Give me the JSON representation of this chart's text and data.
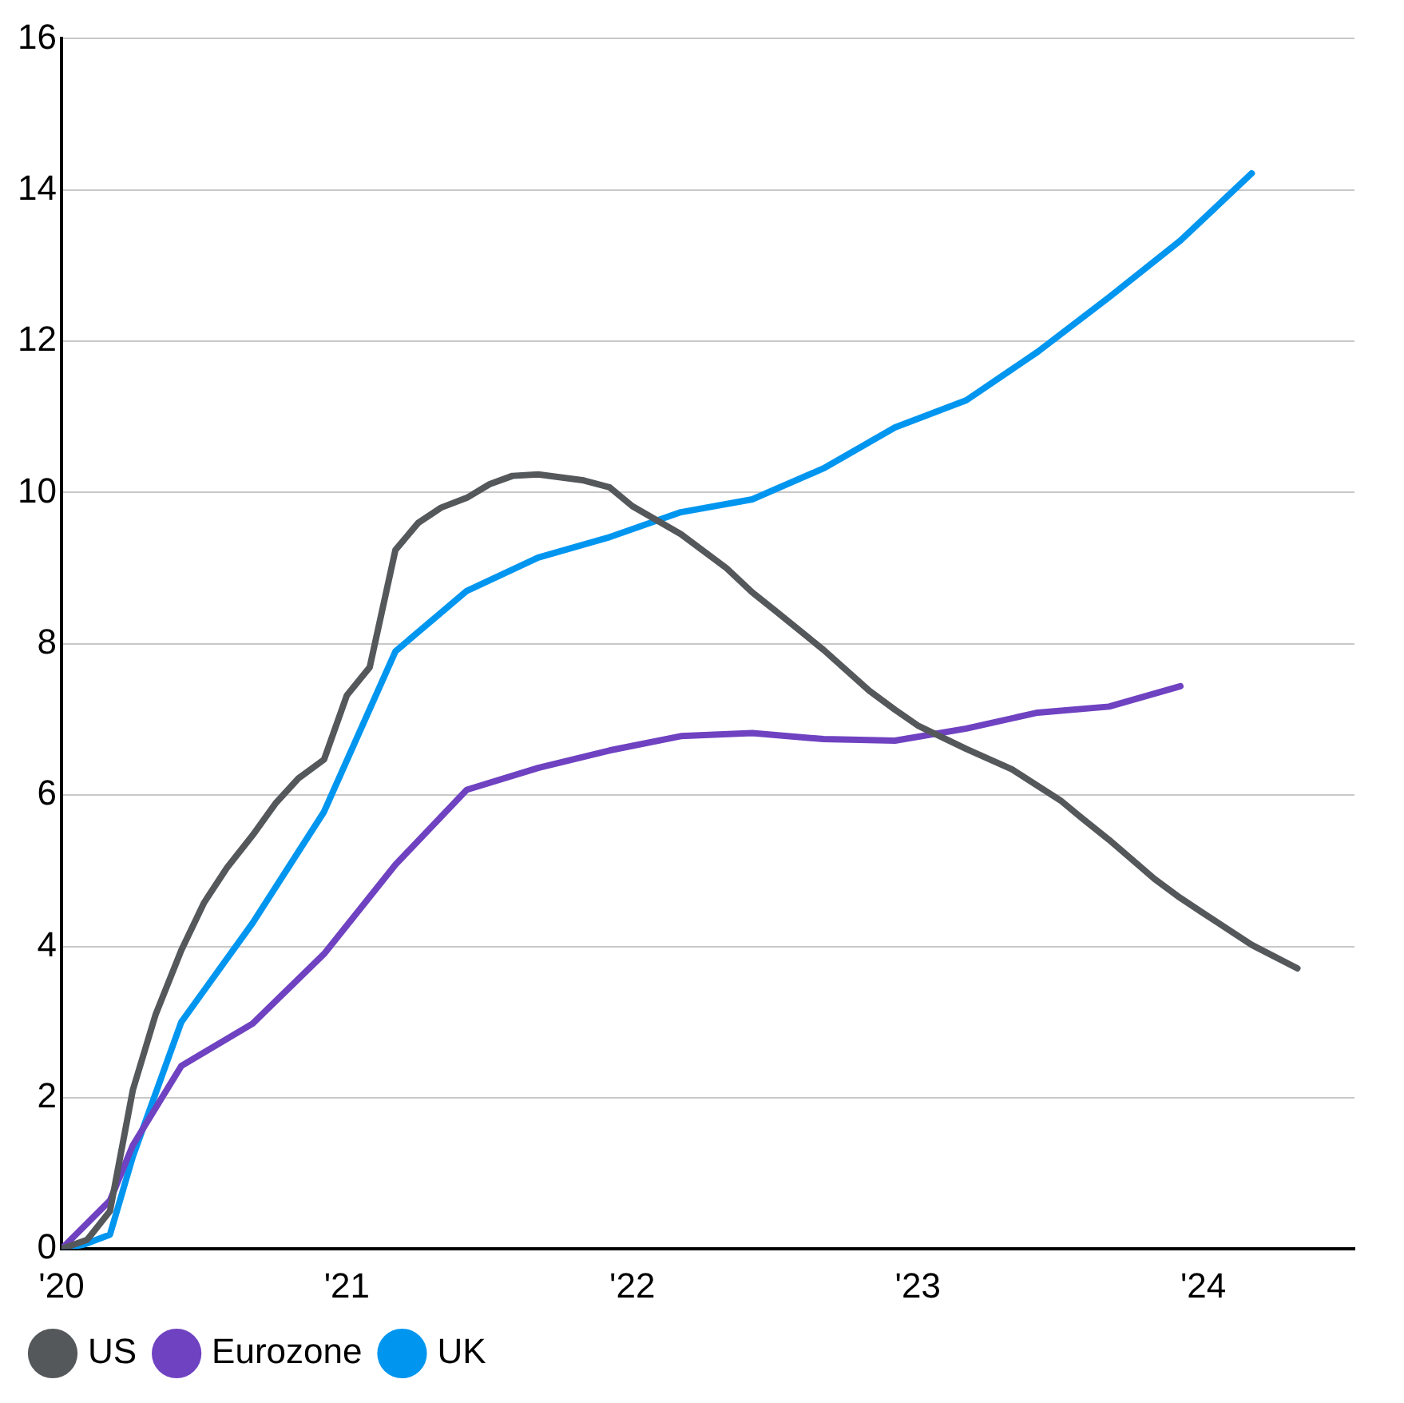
{
  "chart_data": {
    "type": "line",
    "series": [
      {
        "name": "US",
        "color": "#55585b",
        "x": [
          2020,
          2020.09,
          2020.17,
          2020.25,
          2020.33,
          2020.42,
          2020.5,
          2020.58,
          2020.67,
          2020.75,
          2020.83,
          2020.92,
          2021,
          2021.08,
          2021.17,
          2021.25,
          2021.33,
          2021.42,
          2021.5,
          2021.58,
          2021.67,
          2021.75,
          2021.83,
          2021.92,
          2022,
          2022.17,
          2022.33,
          2022.42,
          2022.5,
          2022.67,
          2022.83,
          2022.92,
          2023,
          2023.17,
          2023.33,
          2023.5,
          2023.58,
          2023.67,
          2023.83,
          2023.92,
          2024,
          2024.17,
          2024.33
        ],
        "values": [
          0,
          0.12,
          0.5,
          2.1,
          3.1,
          3.95,
          4.58,
          5.04,
          5.47,
          5.89,
          6.22,
          6.47,
          7.32,
          7.69,
          9.24,
          9.6,
          9.8,
          9.93,
          10.11,
          10.22,
          10.24,
          10.2,
          10.16,
          10.07,
          9.82,
          9.45,
          9,
          8.68,
          8.44,
          7.92,
          7.38,
          7.13,
          6.92,
          6.61,
          6.34,
          5.93,
          5.68,
          5.41,
          4.89,
          4.64,
          4.44,
          4.02,
          3.71
        ]
      },
      {
        "name": "Eurozone",
        "color": "#6f42c1",
        "x": [
          2020,
          2020.17,
          2020.25,
          2020.42,
          2020.67,
          2020.92,
          2021.17,
          2021.42,
          2021.67,
          2021.92,
          2022.17,
          2022.42,
          2022.67,
          2022.92,
          2023.17,
          2023.42,
          2023.67,
          2023.92
        ],
        "values": [
          0,
          0.64,
          1.37,
          2.42,
          2.98,
          3.9,
          5.08,
          6.07,
          6.36,
          6.59,
          6.78,
          6.82,
          6.74,
          6.72,
          6.88,
          7.09,
          7.17,
          7.44
        ]
      },
      {
        "name": "UK",
        "color": "#0096f0",
        "x": [
          2020,
          2020.08,
          2020.17,
          2020.25,
          2020.42,
          2020.67,
          2020.92,
          2021.17,
          2021.42,
          2021.67,
          2021.92,
          2022.17,
          2022.42,
          2022.67,
          2022.92,
          2023.17,
          2023.42,
          2023.67,
          2023.92,
          2024.17
        ],
        "values": [
          0,
          0.06,
          0.19,
          1.22,
          3,
          4.31,
          5.78,
          7.9,
          8.7,
          9.14,
          9.41,
          9.74,
          9.91,
          10.32,
          10.86,
          11.22,
          11.86,
          12.58,
          13.33,
          14.22
        ]
      }
    ],
    "xlim": [
      2020,
      2024.53
    ],
    "xticks": [
      {
        "value": 2020,
        "label": "'20"
      },
      {
        "value": 2021,
        "label": "'21"
      },
      {
        "value": 2022,
        "label": "'22"
      },
      {
        "value": 2023,
        "label": "'23"
      },
      {
        "value": 2024,
        "label": "'24"
      }
    ],
    "ylim": [
      0,
      16
    ],
    "yticks": [
      0,
      2,
      4,
      6,
      8,
      10,
      12,
      14,
      16
    ],
    "grid": "y",
    "legend": "bottom left",
    "marker": "none",
    "line_style": "solid"
  }
}
